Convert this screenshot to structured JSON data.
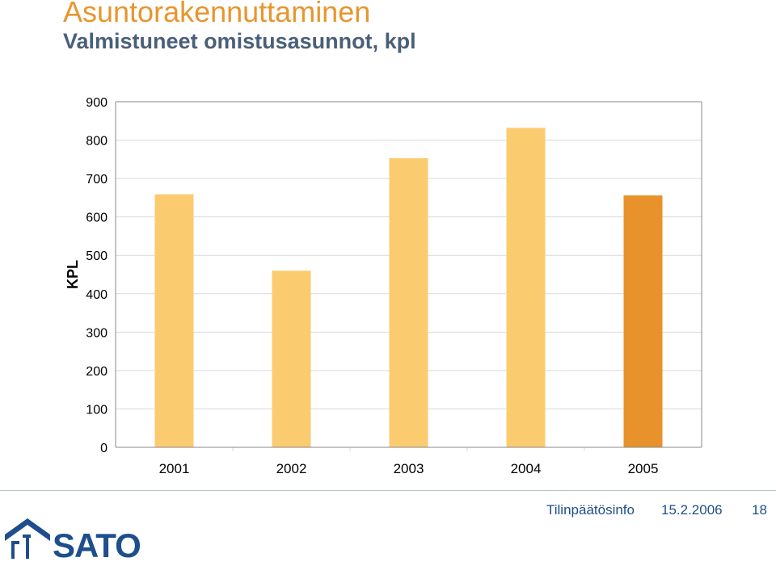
{
  "header": {
    "title": "Asuntorakennuttaminen",
    "subtitle": "Valmistuneet omistusasunnot, kpl"
  },
  "chart_data": {
    "type": "bar",
    "title": "Valmistuneet omistusasunnot, kpl",
    "xlabel": "",
    "ylabel": "KPL",
    "categories": [
      "2001",
      "2002",
      "2003",
      "2004",
      "2005"
    ],
    "values": [
      659,
      460,
      753,
      832,
      656
    ],
    "ylim": [
      0,
      900
    ],
    "yticks": [
      0,
      100,
      200,
      300,
      400,
      500,
      600,
      700,
      800,
      900
    ],
    "grid": true,
    "legend": "none",
    "colors": {
      "bar": "#FBCB70",
      "highlight_bar": "#E8922B",
      "grid": "#d9d9d9",
      "axis": "#888888"
    },
    "highlight_index": 4
  },
  "footer": {
    "label": "Tilinpäätösinfo",
    "date": "15.2.2006",
    "page": "18",
    "logo_text": "SATO",
    "logo_icon": "sato-house-icon"
  }
}
